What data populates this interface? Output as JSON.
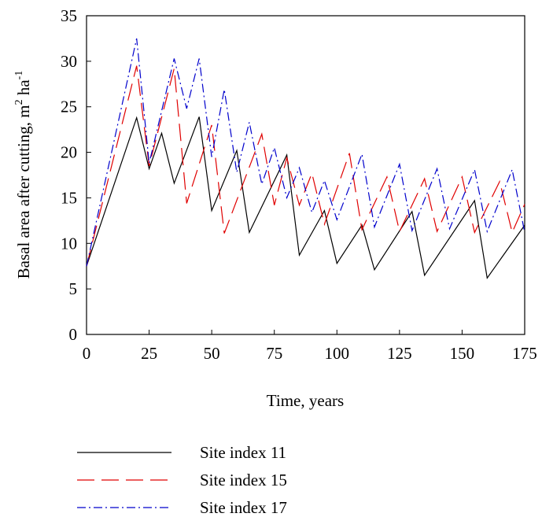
{
  "chart_data": {
    "type": "line",
    "xlabel": "Time, years",
    "ylabel_main": "Basal area after cutting, m",
    "ylabel_sup1": "2",
    "ylabel_mid": " ha",
    "ylabel_sup2": "-1",
    "xlim": [
      0,
      175
    ],
    "ylim": [
      0,
      35
    ],
    "xticks": [
      0,
      25,
      50,
      75,
      100,
      125,
      150,
      175
    ],
    "yticks": [
      0,
      5,
      10,
      15,
      20,
      25,
      30,
      35
    ],
    "grid": false,
    "legend_position": "bottom",
    "series": [
      {
        "name": "Site index 11",
        "color": "#000000",
        "dash": "solid",
        "points": [
          [
            0,
            7.5
          ],
          [
            20,
            23.8
          ],
          [
            25,
            18.2
          ],
          [
            30,
            22.1
          ],
          [
            35,
            16.6
          ],
          [
            45,
            23.9
          ],
          [
            50,
            13.6
          ],
          [
            60,
            20.2
          ],
          [
            65,
            11.2
          ],
          [
            80,
            19.7
          ],
          [
            85,
            8.7
          ],
          [
            95,
            13.6
          ],
          [
            100,
            7.8
          ],
          [
            110,
            12.0
          ],
          [
            115,
            7.1
          ],
          [
            130,
            13.5
          ],
          [
            135,
            6.5
          ],
          [
            155,
            14.7
          ],
          [
            160,
            6.2
          ],
          [
            175,
            12.0
          ]
        ]
      },
      {
        "name": "Site index 15",
        "color": "#e00000",
        "dash": "long-dash",
        "points": [
          [
            0,
            7.5
          ],
          [
            20,
            29.5
          ],
          [
            25,
            18.5
          ],
          [
            35,
            29.2
          ],
          [
            40,
            14.4
          ],
          [
            50,
            23.0
          ],
          [
            55,
            11.1
          ],
          [
            70,
            22.0
          ],
          [
            75,
            14.2
          ],
          [
            80,
            19.4
          ],
          [
            85,
            14.2
          ],
          [
            90,
            17.7
          ],
          [
            95,
            12.1
          ],
          [
            105,
            19.9
          ],
          [
            110,
            11.5
          ],
          [
            120,
            17.3
          ],
          [
            125,
            11.3
          ],
          [
            135,
            17.1
          ],
          [
            140,
            11.3
          ],
          [
            150,
            17.3
          ],
          [
            155,
            11.2
          ],
          [
            165,
            16.8
          ],
          [
            170,
            11.2
          ],
          [
            175,
            14.3
          ]
        ]
      },
      {
        "name": "Site index 17",
        "color": "#0000cc",
        "dash": "dash-dot",
        "points": [
          [
            0,
            7.5
          ],
          [
            20,
            32.5
          ],
          [
            25,
            18.8
          ],
          [
            35,
            30.3
          ],
          [
            40,
            24.8
          ],
          [
            45,
            30.3
          ],
          [
            50,
            19.5
          ],
          [
            55,
            26.9
          ],
          [
            60,
            17.8
          ],
          [
            65,
            23.3
          ],
          [
            70,
            16.5
          ],
          [
            75,
            20.5
          ],
          [
            80,
            15.0
          ],
          [
            85,
            18.3
          ],
          [
            90,
            13.4
          ],
          [
            95,
            16.9
          ],
          [
            100,
            12.6
          ],
          [
            110,
            19.8
          ],
          [
            115,
            11.8
          ],
          [
            125,
            18.7
          ],
          [
            130,
            11.4
          ],
          [
            140,
            18.2
          ],
          [
            145,
            11.6
          ],
          [
            155,
            18.1
          ],
          [
            160,
            11.3
          ],
          [
            170,
            18.1
          ],
          [
            175,
            11.2
          ]
        ]
      }
    ]
  }
}
